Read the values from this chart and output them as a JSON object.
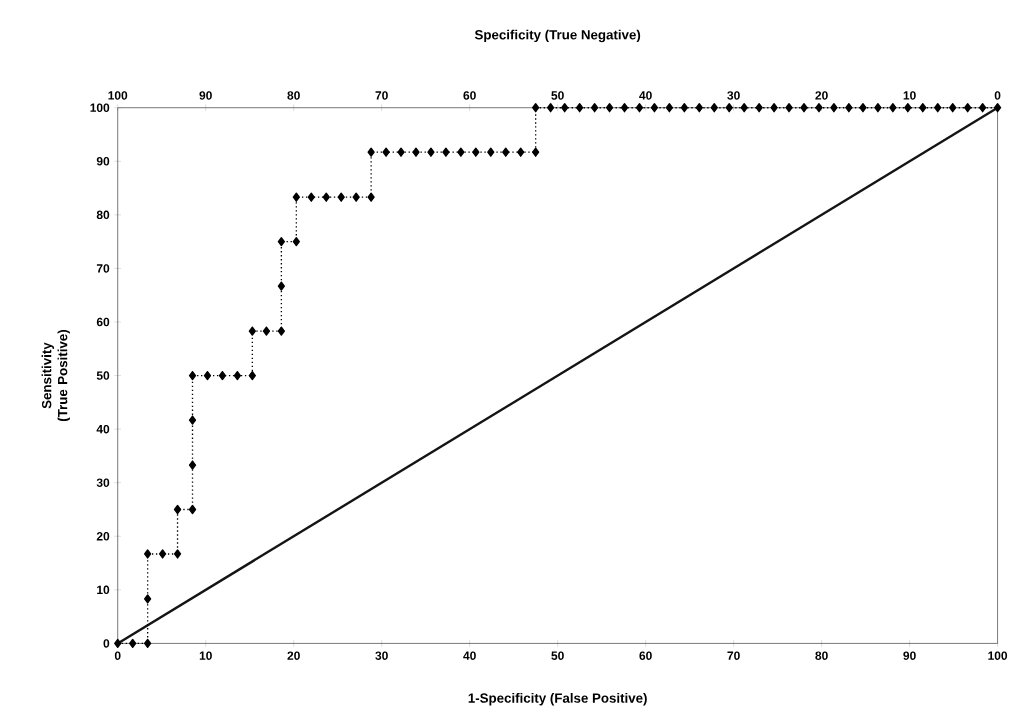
{
  "chart_data": {
    "type": "line",
    "xlabel": "1-Specificity (False Positive)",
    "x2label": "Specificity (True Negative)",
    "ylabel": "Sensitivity (True Positive)",
    "xlim": [
      0,
      100
    ],
    "xticks": [
      0,
      10,
      20,
      30,
      40,
      50,
      60,
      70,
      80,
      90,
      100
    ],
    "x2lim": [
      100,
      0
    ],
    "x2ticks": [
      100,
      90,
      80,
      70,
      60,
      50,
      40,
      30,
      20,
      10,
      0
    ],
    "ylim": [
      0,
      100
    ],
    "yticks": [
      0,
      10,
      20,
      30,
      40,
      50,
      60,
      70,
      80,
      90,
      100
    ],
    "grid": false,
    "series": [
      {
        "color": "#000000",
        "marker": "diamond",
        "line_style": "dotted",
        "x": [
          0,
          1.7,
          3.4,
          3.4,
          3.4,
          5.1,
          6.8,
          6.8,
          8.5,
          8.5,
          8.5,
          8.5,
          10.2,
          11.9,
          13.6,
          15.3,
          15.3,
          16.9,
          18.6,
          18.6,
          18.6,
          20.3,
          20.3,
          22.0,
          23.7,
          25.4,
          27.1,
          28.8,
          28.8,
          30.5,
          32.2,
          33.9,
          35.6,
          37.3,
          39.0,
          40.7,
          42.4,
          44.1,
          45.8,
          47.5,
          47.5,
          49.2,
          50.8,
          52.5,
          54.2,
          55.9,
          57.6,
          59.3,
          61.0,
          62.7,
          64.4,
          66.1,
          67.8,
          69.5,
          71.2,
          72.9,
          74.6,
          76.3,
          78.0,
          79.7,
          81.4,
          83.1,
          84.7,
          86.4,
          88.1,
          89.8,
          91.5,
          93.2,
          94.9,
          96.6,
          98.3,
          100
        ],
        "values": [
          0,
          0,
          0,
          8.3,
          16.7,
          16.7,
          16.7,
          25,
          25,
          33.3,
          41.7,
          50,
          50,
          50,
          50,
          50,
          58.3,
          58.3,
          58.3,
          66.7,
          75,
          75,
          83.3,
          83.3,
          83.3,
          83.3,
          83.3,
          83.3,
          91.7,
          91.7,
          91.7,
          91.7,
          91.7,
          91.7,
          91.7,
          91.7,
          91.7,
          91.7,
          91.7,
          91.7,
          100,
          100,
          100,
          100,
          100,
          100,
          100,
          100,
          100,
          100,
          100,
          100,
          100,
          100,
          100,
          100,
          100,
          100,
          100,
          100,
          100,
          100,
          100,
          100,
          100,
          100,
          100,
          100,
          100,
          100,
          100,
          100
        ]
      },
      {
        "color": "#141414",
        "marker": "none",
        "line_style": "solid",
        "x": [
          0,
          100
        ],
        "values": [
          0,
          100
        ]
      }
    ]
  }
}
